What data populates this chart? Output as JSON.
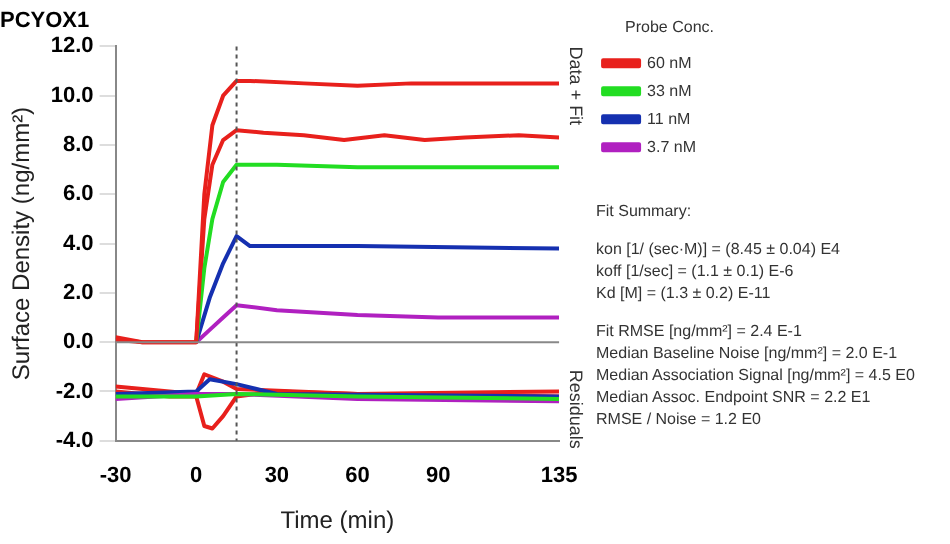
{
  "chart_data": {
    "type": "line",
    "title": "PCYOX1",
    "xlabel": "Time (min)",
    "ylabel": "Surface Density (ng/mm²)",
    "legend_title": "Probe Conc.",
    "xlim": [
      -30,
      135
    ],
    "xticks": [
      -30,
      0,
      30,
      60,
      90,
      135
    ],
    "ylim": [
      -4,
      12
    ],
    "yticks": [
      {
        "value": -4,
        "label": "-4.0"
      },
      {
        "value": -2,
        "label": "-2.0"
      },
      {
        "value": 0,
        "label": "0.0"
      },
      {
        "value": 2,
        "label": "2.0"
      },
      {
        "value": 4,
        "label": "4.0"
      },
      {
        "value": 6,
        "label": "6.0"
      },
      {
        "value": 8,
        "label": "8.0"
      },
      {
        "value": 10,
        "label": "10.0"
      },
      {
        "value": 12,
        "label": "12.0"
      }
    ],
    "grid": false,
    "legend": "right",
    "marker": "none",
    "line_style": "solid",
    "ref_lines": [
      {
        "axis": "x",
        "value": 15,
        "color": "#555555",
        "line_style": "dotted"
      },
      {
        "axis": "y",
        "value": 0,
        "color": "#888888",
        "line_style": "solid"
      }
    ],
    "series": [
      {
        "name": "60 nM",
        "color": "#e8201c",
        "x": [
          -30,
          -20,
          -10,
          0,
          3,
          6,
          10,
          15,
          20,
          40,
          60,
          80,
          100,
          120,
          135
        ],
        "values": [
          0.1,
          0,
          0,
          0,
          6,
          8.8,
          10,
          10.6,
          10.6,
          10.5,
          10.4,
          10.5,
          10.5,
          10.5,
          10.5
        ]
      },
      {
        "name": "33 nM",
        "color": "#22dd22",
        "x": [
          0,
          3,
          6,
          10,
          15,
          30,
          60,
          90,
          135
        ],
        "values": [
          0,
          3,
          5,
          6.5,
          7.2,
          7.2,
          7.1,
          7.1,
          7.1
        ]
      },
      {
        "name": "11 nM",
        "color": "#1530b0",
        "x": [
          0,
          5,
          10,
          15,
          20,
          60,
          135
        ],
        "values": [
          0,
          1.8,
          3.2,
          4.3,
          3.9,
          3.9,
          3.8
        ]
      },
      {
        "name": "3.7 nM",
        "color": "#b020c0",
        "x": [
          0,
          5,
          10,
          15,
          30,
          60,
          90,
          135
        ],
        "values": [
          0,
          0.5,
          1,
          1.5,
          1.3,
          1.1,
          1,
          1
        ]
      },
      {
        "color": "#e8201c",
        "x": [
          -30,
          -20,
          -10,
          0,
          3,
          6,
          10,
          15,
          25,
          40,
          55,
          70,
          85,
          100,
          120,
          135
        ],
        "values": [
          0.2,
          0,
          0,
          0,
          5,
          7.2,
          8.2,
          8.6,
          8.5,
          8.4,
          8.2,
          8.4,
          8.2,
          8.3,
          8.4,
          8.3
        ]
      },
      {
        "color": "#22dd22",
        "x": [
          -30,
          0,
          15,
          60,
          135
        ],
        "values": [
          -2.2,
          -2.2,
          -2.1,
          -2.2,
          -2.3
        ]
      },
      {
        "color": "#b020c0",
        "x": [
          -30,
          0,
          15,
          60,
          135
        ],
        "values": [
          -2.3,
          -2.1,
          -2.1,
          -2.3,
          -2.4
        ]
      },
      {
        "color": "#1530b0",
        "x": [
          -30,
          0,
          5,
          15,
          30,
          135
        ],
        "values": [
          -2.1,
          -2,
          -1.5,
          -1.7,
          -2.1,
          -2.2
        ]
      },
      {
        "color": "#e8201c",
        "x": [
          -30,
          -10,
          0,
          3,
          6,
          10,
          15,
          30,
          60,
          90,
          135
        ],
        "values": [
          -2,
          -2.2,
          -2.2,
          -3.4,
          -3.5,
          -3,
          -2.2,
          -2,
          -2.1,
          -2.1,
          -2.2
        ]
      },
      {
        "color": "#e8201c",
        "x": [
          -30,
          0,
          3,
          10,
          15,
          60,
          135
        ],
        "values": [
          -1.8,
          -2.1,
          -1.3,
          -1.6,
          -1.9,
          -2.1,
          -2
        ]
      }
    ],
    "annotations": [
      "Data + Fit",
      "Residuals",
      "Fit Summary:",
      "kon  [1/ (sec·M)]  =   (8.45 ± 0.04) E4",
      "koff  [1/sec]  =   (1.1 ± 0.1) E-6",
      "Kd  [M]  =   (1.3 ± 0.2) E-11",
      "Fit RMSE [ng/mm²]  =   2.4 E-1",
      "Median Baseline Noise [ng/mm²]  =   2.0 E-1",
      "Median Association Signal [ng/mm²]  =   4.5 E0",
      "Median Assoc. Endpoint SNR  =   2.2 E1",
      "RMSE / Noise  =   1.2 E0"
    ]
  }
}
